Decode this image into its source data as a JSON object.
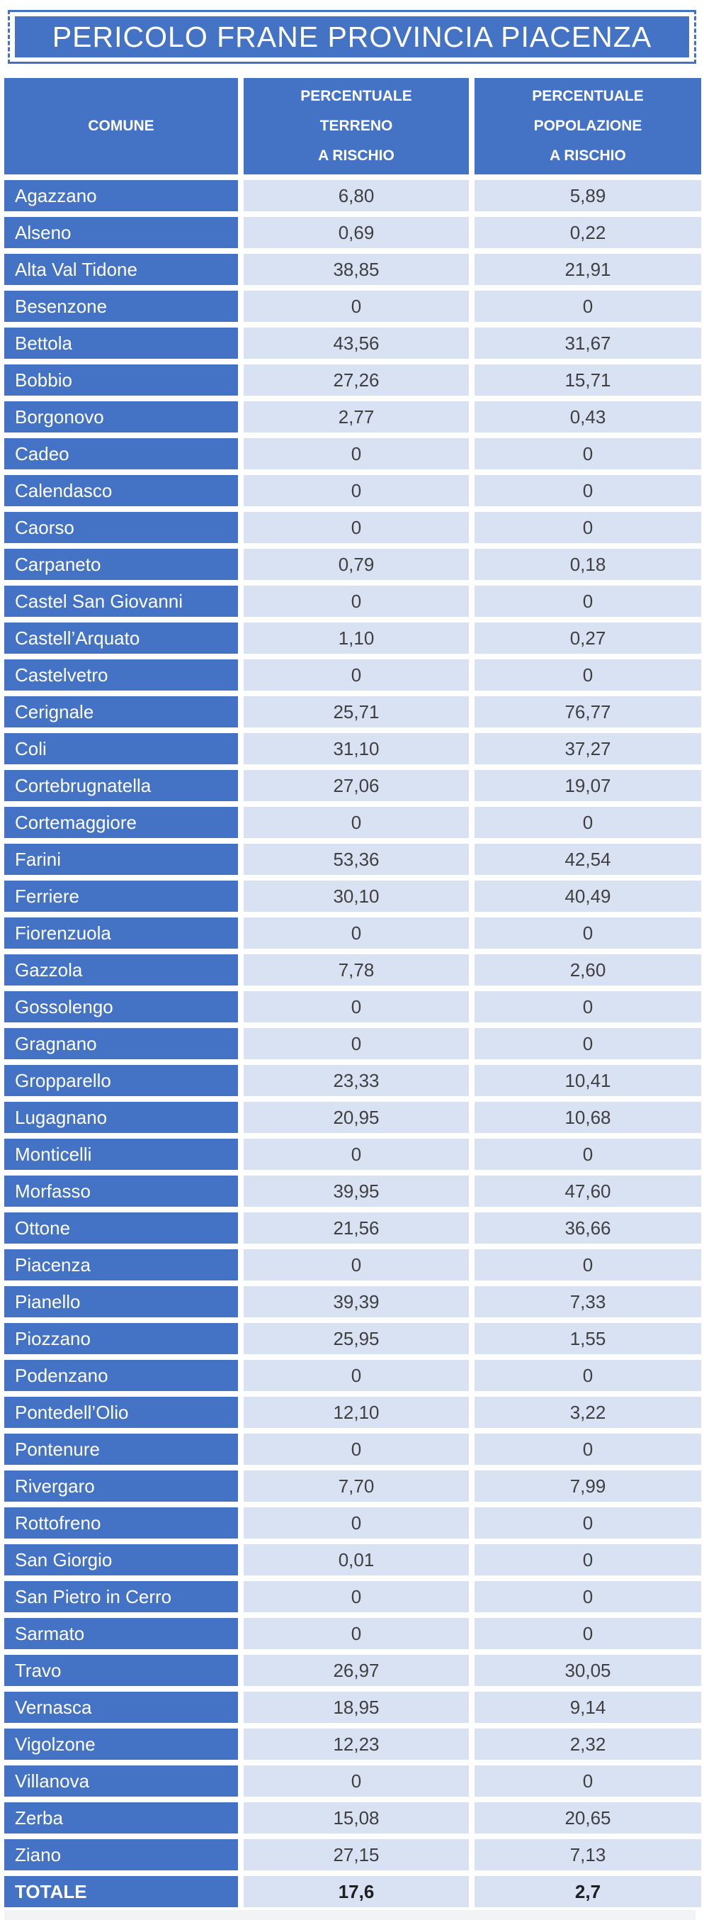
{
  "title": "PERICOLO FRANE PROVINCIA PIACENZA",
  "colors": {
    "accent_blue": "#4472C4",
    "cell_light_blue": "#D9E2F3",
    "value_text": "#404040",
    "header_text": "#FFFFFF"
  },
  "table": {
    "header": {
      "comune": "COMUNE",
      "terreno": [
        "PERCENTUALE",
        "TERRENO",
        "A RISCHIO"
      ],
      "popolazione": [
        "PERCENTUALE",
        "POPOLAZIONE",
        "A RISCHIO"
      ]
    },
    "rows": [
      {
        "comune": "Agazzano",
        "terreno": "6,80",
        "popolazione": "5,89"
      },
      {
        "comune": "Alseno",
        "terreno": "0,69",
        "popolazione": "0,22"
      },
      {
        "comune": "Alta Val Tidone",
        "terreno": "38,85",
        "popolazione": "21,91"
      },
      {
        "comune": "Besenzone",
        "terreno": "0",
        "popolazione": "0"
      },
      {
        "comune": "Bettola",
        "terreno": "43,56",
        "popolazione": "31,67"
      },
      {
        "comune": "Bobbio",
        "terreno": "27,26",
        "popolazione": "15,71"
      },
      {
        "comune": "Borgonovo",
        "terreno": "2,77",
        "popolazione": "0,43"
      },
      {
        "comune": "Cadeo",
        "terreno": "0",
        "popolazione": "0"
      },
      {
        "comune": "Calendasco",
        "terreno": "0",
        "popolazione": "0"
      },
      {
        "comune": "Caorso",
        "terreno": "0",
        "popolazione": "0"
      },
      {
        "comune": "Carpaneto",
        "terreno": "0,79",
        "popolazione": "0,18"
      },
      {
        "comune": "Castel San Giovanni",
        "terreno": "0",
        "popolazione": "0"
      },
      {
        "comune": "Castell’Arquato",
        "terreno": "1,10",
        "popolazione": "0,27"
      },
      {
        "comune": "Castelvetro",
        "terreno": "0",
        "popolazione": "0"
      },
      {
        "comune": "Cerignale",
        "terreno": "25,71",
        "popolazione": "76,77"
      },
      {
        "comune": "Coli",
        "terreno": "31,10",
        "popolazione": "37,27"
      },
      {
        "comune": "Cortebrugnatella",
        "terreno": "27,06",
        "popolazione": "19,07"
      },
      {
        "comune": "Cortemaggiore",
        "terreno": "0",
        "popolazione": "0"
      },
      {
        "comune": "Farini",
        "terreno": "53,36",
        "popolazione": "42,54"
      },
      {
        "comune": "Ferriere",
        "terreno": "30,10",
        "popolazione": "40,49"
      },
      {
        "comune": "Fiorenzuola",
        "terreno": "0",
        "popolazione": "0"
      },
      {
        "comune": "Gazzola",
        "terreno": "7,78",
        "popolazione": "2,60"
      },
      {
        "comune": "Gossolengo",
        "terreno": "0",
        "popolazione": "0"
      },
      {
        "comune": "Gragnano",
        "terreno": "0",
        "popolazione": "0"
      },
      {
        "comune": "Gropparello",
        "terreno": "23,33",
        "popolazione": "10,41"
      },
      {
        "comune": "Lugagnano",
        "terreno": "20,95",
        "popolazione": "10,68"
      },
      {
        "comune": "Monticelli",
        "terreno": "0",
        "popolazione": "0"
      },
      {
        "comune": "Morfasso",
        "terreno": "39,95",
        "popolazione": "47,60"
      },
      {
        "comune": "Ottone",
        "terreno": "21,56",
        "popolazione": "36,66"
      },
      {
        "comune": "Piacenza",
        "terreno": "0",
        "popolazione": "0"
      },
      {
        "comune": "Pianello",
        "terreno": "39,39",
        "popolazione": "7,33"
      },
      {
        "comune": "Piozzano",
        "terreno": "25,95",
        "popolazione": "1,55"
      },
      {
        "comune": "Podenzano",
        "terreno": "0",
        "popolazione": "0"
      },
      {
        "comune": "Pontedell’Olio",
        "terreno": "12,10",
        "popolazione": "3,22"
      },
      {
        "comune": "Pontenure",
        "terreno": "0",
        "popolazione": "0"
      },
      {
        "comune": "Rivergaro",
        "terreno": "7,70",
        "popolazione": "7,99"
      },
      {
        "comune": "Rottofreno",
        "terreno": "0",
        "popolazione": "0"
      },
      {
        "comune": "San Giorgio",
        "terreno": "0,01",
        "popolazione": "0"
      },
      {
        "comune": "San Pietro in Cerro",
        "terreno": "0",
        "popolazione": "0"
      },
      {
        "comune": "Sarmato",
        "terreno": "0",
        "popolazione": "0"
      },
      {
        "comune": "Travo",
        "terreno": "26,97",
        "popolazione": "30,05"
      },
      {
        "comune": "Vernasca",
        "terreno": "18,95",
        "popolazione": "9,14"
      },
      {
        "comune": "Vigolzone",
        "terreno": "12,23",
        "popolazione": "2,32"
      },
      {
        "comune": "Villanova",
        "terreno": "0",
        "popolazione": "0"
      },
      {
        "comune": "Zerba",
        "terreno": "15,08",
        "popolazione": "20,65"
      },
      {
        "comune": "Ziano",
        "terreno": "27,15",
        "popolazione": "7,13"
      }
    ],
    "total": {
      "label": "TOTALE",
      "terreno": "17,6",
      "popolazione": "2,7"
    }
  },
  "chart_data": {
    "type": "table",
    "title": "PERICOLO FRANE PROVINCIA PIACENZA",
    "columns": [
      "COMUNE",
      "PERCENTUALE TERRENO A RISCHIO",
      "PERCENTUALE POPOLAZIONE A RISCHIO"
    ],
    "decimal_separator_displayed": ",",
    "rows": [
      [
        "Agazzano",
        6.8,
        5.89
      ],
      [
        "Alseno",
        0.69,
        0.22
      ],
      [
        "Alta Val Tidone",
        38.85,
        21.91
      ],
      [
        "Besenzone",
        0,
        0
      ],
      [
        "Bettola",
        43.56,
        31.67
      ],
      [
        "Bobbio",
        27.26,
        15.71
      ],
      [
        "Borgonovo",
        2.77,
        0.43
      ],
      [
        "Cadeo",
        0,
        0
      ],
      [
        "Calendasco",
        0,
        0
      ],
      [
        "Caorso",
        0,
        0
      ],
      [
        "Carpaneto",
        0.79,
        0.18
      ],
      [
        "Castel San Giovanni",
        0,
        0
      ],
      [
        "Castell’Arquato",
        1.1,
        0.27
      ],
      [
        "Castelvetro",
        0,
        0
      ],
      [
        "Cerignale",
        25.71,
        76.77
      ],
      [
        "Coli",
        31.1,
        37.27
      ],
      [
        "Cortebrugnatella",
        27.06,
        19.07
      ],
      [
        "Cortemaggiore",
        0,
        0
      ],
      [
        "Farini",
        53.36,
        42.54
      ],
      [
        "Ferriere",
        30.1,
        40.49
      ],
      [
        "Fiorenzuola",
        0,
        0
      ],
      [
        "Gazzola",
        7.78,
        2.6
      ],
      [
        "Gossolengo",
        0,
        0
      ],
      [
        "Gragnano",
        0,
        0
      ],
      [
        "Gropparello",
        23.33,
        10.41
      ],
      [
        "Lugagnano",
        20.95,
        10.68
      ],
      [
        "Monticelli",
        0,
        0
      ],
      [
        "Morfasso",
        39.95,
        47.6
      ],
      [
        "Ottone",
        21.56,
        36.66
      ],
      [
        "Piacenza",
        0,
        0
      ],
      [
        "Pianello",
        39.39,
        7.33
      ],
      [
        "Piozzano",
        25.95,
        1.55
      ],
      [
        "Podenzano",
        0,
        0
      ],
      [
        "Pontedell’Olio",
        12.1,
        3.22
      ],
      [
        "Pontenure",
        0,
        0
      ],
      [
        "Rivergaro",
        7.7,
        7.99
      ],
      [
        "Rottofreno",
        0,
        0
      ],
      [
        "San Giorgio",
        0.01,
        0
      ],
      [
        "San Pietro in Cerro",
        0,
        0
      ],
      [
        "Sarmato",
        0,
        0
      ],
      [
        "Travo",
        26.97,
        30.05
      ],
      [
        "Vernasca",
        18.95,
        9.14
      ],
      [
        "Vigolzone",
        12.23,
        2.32
      ],
      [
        "Villanova",
        0,
        0
      ],
      [
        "Zerba",
        15.08,
        20.65
      ],
      [
        "Ziano",
        27.15,
        7.13
      ]
    ],
    "total_row": [
      "TOTALE",
      17.6,
      2.7
    ]
  }
}
